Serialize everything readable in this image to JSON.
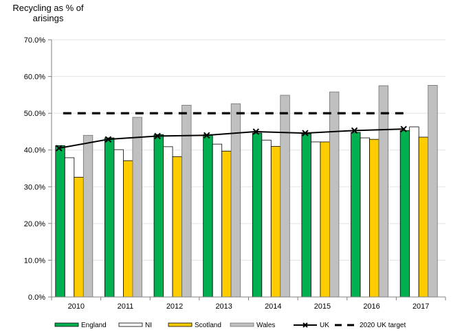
{
  "chart_data": {
    "type": "bar",
    "title": "",
    "ylabel": "Recycling as % of arisings",
    "ylabel_lines": [
      "Recycling as % of",
      "arisings"
    ],
    "xlabel": "",
    "categories": [
      "2010",
      "2011",
      "2012",
      "2013",
      "2014",
      "2015",
      "2016",
      "2017"
    ],
    "ylim": [
      0,
      70
    ],
    "yticks": [
      0,
      10,
      20,
      30,
      40,
      50,
      60,
      70
    ],
    "ytick_labels": [
      "0.0%",
      "10.0%",
      "20.0%",
      "30.0%",
      "40.0%",
      "50.0%",
      "60.0%",
      "70.0%"
    ],
    "grid": true,
    "legend_position": "bottom",
    "series": [
      {
        "name": "England",
        "kind": "bar",
        "color": "#00b050",
        "values": [
          41.2,
          43.3,
          44.2,
          44.2,
          44.6,
          44.4,
          44.8,
          45.3
        ]
      },
      {
        "name": "NI",
        "kind": "bar",
        "color": "#ffffff",
        "values": [
          37.9,
          40.1,
          40.9,
          41.6,
          42.7,
          42.2,
          43.3,
          46.3
        ]
      },
      {
        "name": "Scotland",
        "kind": "bar",
        "color": "#ffcc00",
        "values": [
          32.6,
          37.1,
          38.2,
          39.7,
          41.0,
          42.2,
          42.9,
          43.5
        ]
      },
      {
        "name": "Wales",
        "kind": "bar",
        "color": "#c0c0c0",
        "values": [
          44.0,
          48.9,
          52.2,
          52.6,
          54.9,
          55.8,
          57.5,
          57.6
        ]
      },
      {
        "name": "UK",
        "kind": "line",
        "marker": "x",
        "color": "#000000",
        "values": [
          40.5,
          42.9,
          43.8,
          44.0,
          45.0,
          44.6,
          45.3,
          45.7
        ]
      },
      {
        "name": "2020 UK target",
        "kind": "dashed-line",
        "color": "#000000",
        "values": [
          50,
          50,
          50,
          50,
          50,
          50,
          50,
          50
        ]
      }
    ]
  }
}
